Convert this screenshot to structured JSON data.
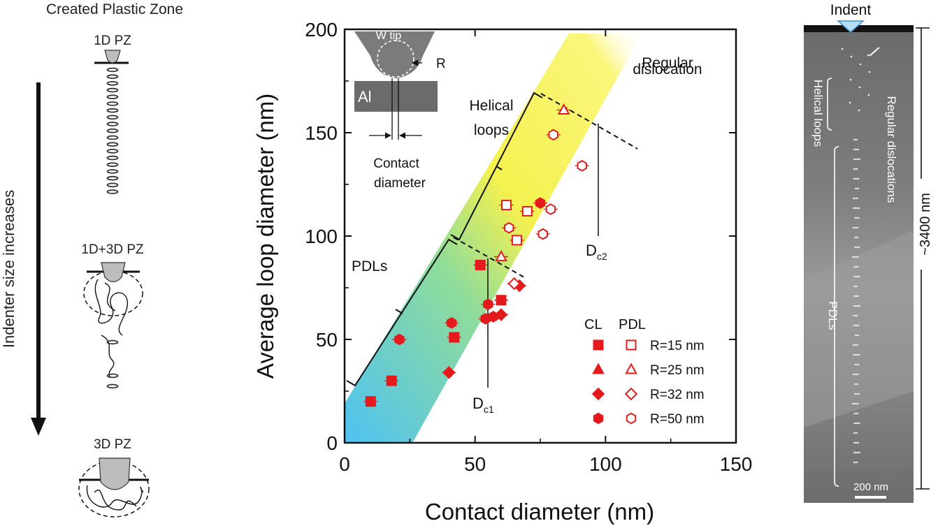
{
  "left_panel": {
    "title": "Created Plastic Zone",
    "arrow_label": "Indenter size increases",
    "stages": [
      "1D PZ",
      "1D+3D PZ",
      "3D PZ"
    ]
  },
  "inset": {
    "tip_label": "W tip",
    "radius_label": "R",
    "material_label": "Al",
    "contact_label_1": "Contact",
    "contact_label_2": "diameter"
  },
  "annotations": {
    "regular_1": "Regular",
    "regular_2": "dislocation",
    "helical_1": "Helical",
    "helical_2": "loops",
    "pdls": "PDLs",
    "dc1_main": "D",
    "dc1_sub": "c1",
    "dc2_main": "D",
    "dc2_sub": "c2"
  },
  "legend": {
    "col_cl": "CL",
    "col_pdl": "PDL",
    "rows": [
      "R=15 nm",
      "R=25 nm",
      "R=32 nm",
      "R=50 nm"
    ],
    "shapes": [
      "square",
      "triangle",
      "diamond",
      "hexagon"
    ]
  },
  "right_panel": {
    "indent_label": "Indent",
    "helical_label": "Helical loops",
    "regular_label": "Regular dislocations",
    "pdls_label": "PDLs",
    "length_label": "~3400 nm",
    "scalebar_label": "200 nm"
  },
  "colors": {
    "marker": "#e41a1c",
    "band_blue": "#5ec8f0",
    "band_yellow": "#f7f24a"
  },
  "chart_data": {
    "type": "scatter",
    "title": "",
    "xlabel": "Contact diameter (nm)",
    "ylabel": "Average loop diameter (nm)",
    "xlim": [
      0,
      150
    ],
    "ylim": [
      0,
      200
    ],
    "xticks": [
      0,
      50,
      100,
      150
    ],
    "yticks": [
      0,
      50,
      100,
      150,
      200
    ],
    "series": [
      {
        "name": "CL R=15 nm",
        "shape": "square",
        "filled": true,
        "points": [
          [
            10,
            20
          ],
          [
            18,
            30
          ],
          [
            42,
            51
          ],
          [
            52,
            86
          ],
          [
            60,
            69
          ]
        ]
      },
      {
        "name": "PDL R=15 nm",
        "shape": "square",
        "filled": false,
        "points": [
          [
            62,
            115
          ],
          [
            66,
            98
          ],
          [
            70,
            112
          ]
        ]
      },
      {
        "name": "CL R=25 nm",
        "shape": "triangle",
        "filled": true,
        "points": []
      },
      {
        "name": "PDL R=25 nm",
        "shape": "triangle",
        "filled": false,
        "points": [
          [
            60,
            90
          ],
          [
            84,
            161
          ]
        ]
      },
      {
        "name": "CL R=32 nm",
        "shape": "diamond",
        "filled": true,
        "points": [
          [
            40,
            34
          ],
          [
            60,
            62
          ],
          [
            67,
            76
          ]
        ]
      },
      {
        "name": "PDL R=32 nm",
        "shape": "diamond",
        "filled": false,
        "points": [
          [
            65,
            77
          ]
        ]
      },
      {
        "name": "CL R=50 nm",
        "shape": "hexagon",
        "filled": true,
        "points": [
          [
            21,
            50
          ],
          [
            41,
            58
          ],
          [
            54,
            60
          ],
          [
            55,
            67
          ],
          [
            57,
            61
          ],
          [
            75,
            116
          ]
        ]
      },
      {
        "name": "PDL R=50 nm",
        "shape": "hexagon",
        "filled": false,
        "points": [
          [
            63,
            104
          ],
          [
            76,
            101
          ],
          [
            79,
            113
          ],
          [
            80,
            149
          ],
          [
            91,
            134
          ]
        ]
      }
    ]
  }
}
